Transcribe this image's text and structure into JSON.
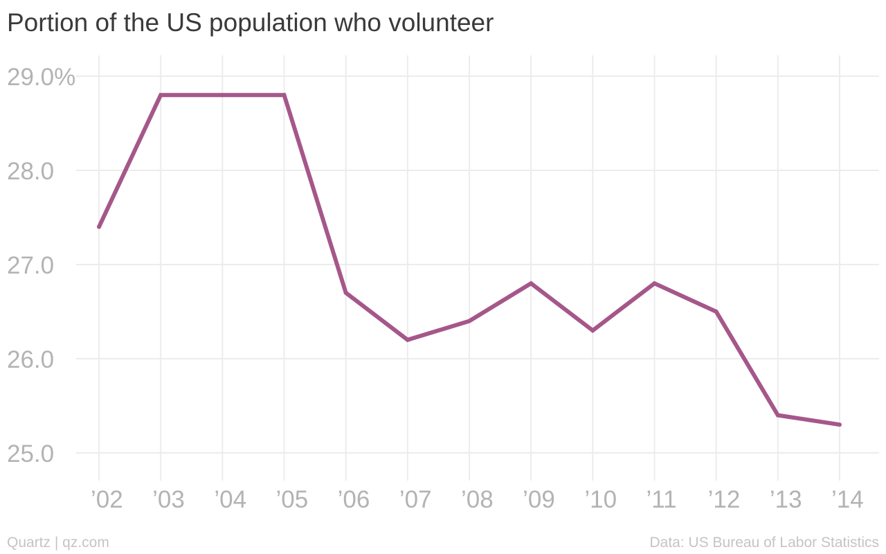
{
  "chart_data": {
    "type": "line",
    "title": "Portion of the US population who volunteer",
    "xlabel": "",
    "ylabel": "",
    "categories": [
      "’02",
      "’03",
      "’04",
      "’05",
      "’06",
      "’07",
      "’08",
      "’09",
      "’10",
      "’11",
      "’12",
      "’13",
      "’14"
    ],
    "series": [
      {
        "values": [
          27.4,
          28.8,
          28.8,
          28.8,
          26.7,
          26.2,
          26.4,
          26.8,
          26.3,
          26.8,
          26.5,
          25.4,
          25.3
        ],
        "color": "#a5578a"
      }
    ],
    "ylim": [
      25.0,
      29.0
    ],
    "yticks": [
      29.0,
      28.0,
      27.0,
      26.0,
      25.0
    ],
    "ytick_labels": [
      "29.0%",
      "28.0",
      "27.0",
      "26.0",
      "25.0"
    ],
    "grid": true,
    "legend": "none"
  },
  "footer": {
    "source_left": "Quartz | qz.com",
    "source_right": "Data: US Bureau of Labor Statistics"
  },
  "colors": {
    "line": "#a5578a",
    "grid": "#ececec",
    "tick_text": "#b3b3b3",
    "title_text": "#3a3a3a"
  }
}
